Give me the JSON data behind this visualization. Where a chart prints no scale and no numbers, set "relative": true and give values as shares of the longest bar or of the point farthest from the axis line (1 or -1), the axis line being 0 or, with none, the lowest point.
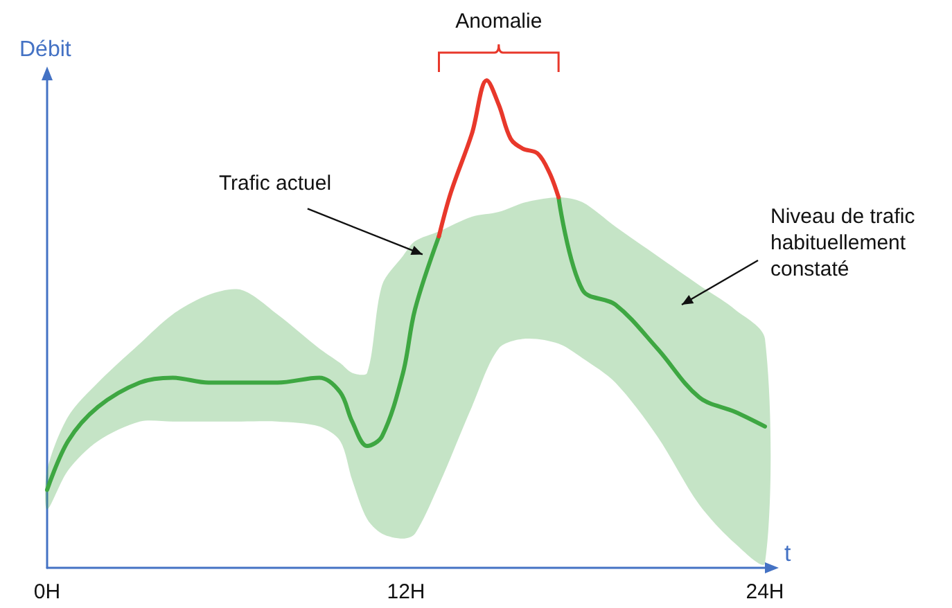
{
  "chart_data": {
    "type": "line",
    "relative": true,
    "xlabel": "t",
    "ylabel": "Débit",
    "x": [
      0,
      0.7,
      1.7,
      3.1,
      4.2,
      5.4,
      6.5,
      7.7,
      9.1,
      9.8,
      10.2,
      10.7,
      11.2,
      11.9,
      12.3,
      13.1,
      14.2,
      15.1,
      16.0,
      17.1,
      17.9,
      19.0,
      20.4,
      21.8,
      23.0,
      24.0
    ],
    "series": [
      {
        "color": "#3ea742",
        "values": [
          0.16,
          0.26,
          0.33,
          0.38,
          0.39,
          0.38,
          0.38,
          0.38,
          0.39,
          0.36,
          0.3,
          0.25,
          0.27,
          0.4,
          0.53,
          0.68,
          null,
          null,
          null,
          0.76,
          0.57,
          0.54,
          0.45,
          0.35,
          0.32,
          0.29
        ],
        "lower": [
          0.12,
          0.2,
          0.26,
          0.3,
          0.3,
          0.3,
          0.3,
          0.3,
          0.29,
          0.26,
          0.18,
          0.1,
          0.07,
          0.06,
          0.07,
          0.17,
          0.33,
          0.45,
          0.47,
          0.46,
          0.43,
          0.38,
          0.27,
          0.13,
          0.05,
          0.01
        ],
        "upper": [
          0.2,
          0.31,
          0.38,
          0.46,
          0.52,
          0.56,
          0.57,
          0.52,
          0.45,
          0.42,
          0.4,
          0.4,
          0.58,
          0.64,
          0.67,
          0.69,
          0.72,
          0.73,
          0.75,
          0.76,
          0.75,
          0.7,
          0.64,
          0.58,
          0.53,
          0.47
        ]
      },
      {
        "color": "#e8382b",
        "x": [
          13.1,
          13.5,
          14.2,
          14.7,
          15.1,
          15.5,
          15.9,
          16.4,
          16.8,
          17.1
        ],
        "values": [
          0.68,
          0.77,
          0.89,
          1.0,
          0.95,
          0.88,
          0.86,
          0.85,
          0.81,
          0.76
        ]
      }
    ],
    "xlim": [
      0,
      24
    ],
    "xticks": [
      {
        "value": 0,
        "label": "0H"
      },
      {
        "value": 12,
        "label": "12H"
      },
      {
        "value": 24,
        "label": "24H"
      }
    ],
    "tick_labels": "x",
    "grid": false,
    "marker": "none",
    "line_style": "solid",
    "annotations": [
      "Anomalie",
      {
        "text": "Trafic actuel",
        "x": 12.6,
        "y": 0.64
      },
      "Niveau de trafic habituellement constaté"
    ]
  }
}
